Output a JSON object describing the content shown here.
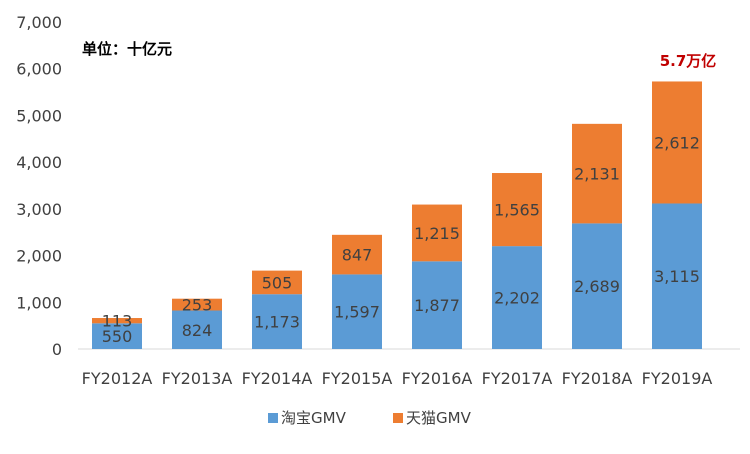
{
  "chart_data": {
    "type": "bar",
    "stacked": true,
    "title": "",
    "unit_note": "单位：十亿元",
    "annotation": "5.7万亿",
    "xlabel": "",
    "ylabel": "",
    "ylim": [
      0,
      7000
    ],
    "yticks": [
      "0",
      "1,000",
      "2,000",
      "3,000",
      "4,000",
      "5,000",
      "6,000",
      "7,000"
    ],
    "grid": false,
    "legend_position": "bottom",
    "categories": [
      "FY2012A",
      "FY2013A",
      "FY2014A",
      "FY2015A",
      "FY2016A",
      "FY2017A",
      "FY2018A",
      "FY2019A"
    ],
    "series": [
      {
        "name": "淘宝GMV",
        "color": "#5B9BD5",
        "values": [
          550,
          824,
          1173,
          1597,
          1877,
          2202,
          2689,
          3115
        ],
        "labels": [
          "550",
          "824",
          "1,173",
          "1,597",
          "1,877",
          "2,202",
          "2,689",
          "3,115"
        ]
      },
      {
        "name": "天猫GMV",
        "color": "#ED7D31",
        "values": [
          113,
          253,
          505,
          847,
          1215,
          1565,
          2131,
          2612
        ],
        "labels": [
          "113",
          "253",
          "505",
          "847",
          "1,215",
          "1,565",
          "2,131",
          "2,612"
        ]
      }
    ],
    "annotation_color": "#C00000"
  }
}
